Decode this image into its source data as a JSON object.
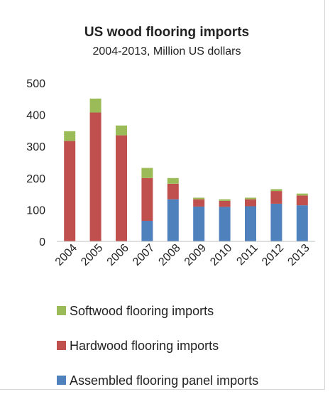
{
  "chart_data": {
    "type": "bar",
    "stacked": true,
    "title": "US wood flooring imports",
    "subtitle": "2004-2013, Million US dollars",
    "xlabel": "",
    "ylabel": "",
    "ylim": [
      0,
      500
    ],
    "yticks": [
      0,
      100,
      200,
      300,
      400,
      500
    ],
    "grid": false,
    "legend_position": "bottom",
    "categories": [
      "2004",
      "2005",
      "2006",
      "2007",
      "2008",
      "2009",
      "2010",
      "2011",
      "2012",
      "2013"
    ],
    "series": [
      {
        "name": "Assembled flooring panel imports",
        "color": "#4f81bd",
        "values": [
          0,
          0,
          0,
          65,
          133,
          110,
          109,
          111,
          119,
          114
        ]
      },
      {
        "name": "Hardwood flooring imports",
        "color": "#c0504d",
        "values": [
          317,
          407,
          335,
          135,
          49,
          23,
          19,
          22,
          40,
          31
        ]
      },
      {
        "name": "Softwood flooring imports",
        "color": "#9bbb59",
        "values": [
          31,
          44,
          31,
          32,
          18,
          5,
          5,
          5,
          6,
          6
        ]
      }
    ],
    "legend_order": [
      "Softwood flooring imports",
      "Hardwood flooring imports",
      "Assembled flooring panel imports"
    ]
  }
}
